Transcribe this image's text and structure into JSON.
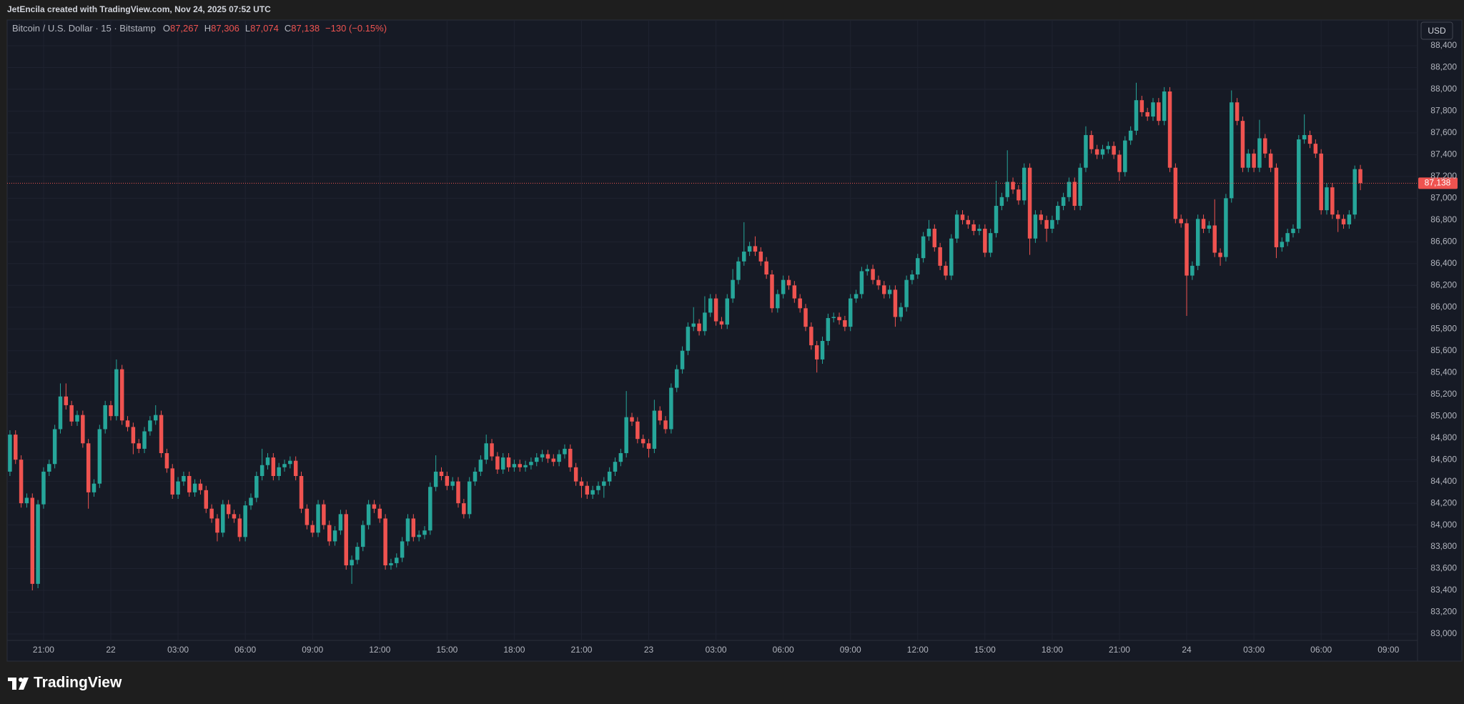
{
  "header": {
    "text": "JetEncila created with TradingView.com, Nov 24, 2025 07:52 UTC"
  },
  "footer": {
    "logo_text": "TradingView"
  },
  "chart_data": {
    "type": "candlestick",
    "title": "Bitcoin / U.S. Dollar · 15 · Bitstamp",
    "ohlc_legend": [
      {
        "key": "O",
        "value": "87,267"
      },
      {
        "key": "H",
        "value": "87,306"
      },
      {
        "key": "L",
        "value": "87,074"
      },
      {
        "key": "C",
        "value": "87,138"
      }
    ],
    "change_text": "−130 (−0.15%)",
    "currency": "USD",
    "up_color": "#26a69a",
    "down_color": "#ef5350",
    "grid": true,
    "last_price": {
      "value": 87138,
      "label": "87,138"
    },
    "xlim": [
      -0.5,
      251.2
    ],
    "xticks": [
      {
        "value": 6,
        "label": "21:00"
      },
      {
        "value": 18,
        "label": "22"
      },
      {
        "value": 30,
        "label": "03:00"
      },
      {
        "value": 42,
        "label": "06:00"
      },
      {
        "value": 54,
        "label": "09:00"
      },
      {
        "value": 66,
        "label": "12:00"
      },
      {
        "value": 78,
        "label": "15:00"
      },
      {
        "value": 90,
        "label": "18:00"
      },
      {
        "value": 102,
        "label": "21:00"
      },
      {
        "value": 114,
        "label": "23"
      },
      {
        "value": 126,
        "label": "03:00"
      },
      {
        "value": 138,
        "label": "06:00"
      },
      {
        "value": 150,
        "label": "09:00"
      },
      {
        "value": 162,
        "label": "12:00"
      },
      {
        "value": 174,
        "label": "15:00"
      },
      {
        "value": 186,
        "label": "18:00"
      },
      {
        "value": 198,
        "label": "21:00"
      },
      {
        "value": 210,
        "label": "24"
      },
      {
        "value": 222,
        "label": "03:00"
      },
      {
        "value": 234,
        "label": "06:00"
      },
      {
        "value": 246,
        "label": "09:00"
      }
    ],
    "ylim": [
      82941,
      88636
    ],
    "yticks": [
      {
        "value": 83000,
        "label": "83,000"
      },
      {
        "value": 83200,
        "label": "83,200"
      },
      {
        "value": 83400,
        "label": "83,400"
      },
      {
        "value": 83600,
        "label": "83,600"
      },
      {
        "value": 83800,
        "label": "83,800"
      },
      {
        "value": 84000,
        "label": "84,000"
      },
      {
        "value": 84200,
        "label": "84,200"
      },
      {
        "value": 84400,
        "label": "84,400"
      },
      {
        "value": 84600,
        "label": "84,600"
      },
      {
        "value": 84800,
        "label": "84,800"
      },
      {
        "value": 85000,
        "label": "85,000"
      },
      {
        "value": 85200,
        "label": "85,200"
      },
      {
        "value": 85400,
        "label": "85,400"
      },
      {
        "value": 85600,
        "label": "85,600"
      },
      {
        "value": 85800,
        "label": "85,800"
      },
      {
        "value": 86000,
        "label": "86,000"
      },
      {
        "value": 86200,
        "label": "86,200"
      },
      {
        "value": 86400,
        "label": "86,400"
      },
      {
        "value": 86600,
        "label": "86,600"
      },
      {
        "value": 86800,
        "label": "86,800"
      },
      {
        "value": 87000,
        "label": "87,000"
      },
      {
        "value": 87200,
        "label": "87,200"
      },
      {
        "value": 87400,
        "label": "87,400"
      },
      {
        "value": 87600,
        "label": "87,600"
      },
      {
        "value": 87800,
        "label": "87,800"
      },
      {
        "value": 88000,
        "label": "88,000"
      },
      {
        "value": 88200,
        "label": "88,200"
      },
      {
        "value": 88400,
        "label": "88,400"
      }
    ],
    "open": [
      84490,
      84830,
      84600,
      84200,
      84250,
      83460,
      84190,
      84490,
      84560,
      84880,
      85180,
      85100,
      84950,
      85010,
      84750,
      84300,
      84380,
      84880,
      85100,
      85000,
      85430,
      84960,
      84900,
      84750,
      84700,
      84860,
      84960,
      85010,
      84660,
      84520,
      84280,
      84400,
      84450,
      84300,
      84380,
      84320,
      84150,
      84060,
      83930,
      84190,
      84100,
      84060,
      83890,
      84180,
      84250,
      84450,
      84550,
      84620,
      84450,
      84530,
      84560,
      84590,
      84450,
      84150,
      84000,
      83930,
      84190,
      84000,
      83850,
      83950,
      84100,
      83630,
      83680,
      83800,
      84000,
      84190,
      84150,
      84060,
      83630,
      83650,
      83700,
      83850,
      84060,
      83890,
      83910,
      83950,
      84350,
      84490,
      84450,
      84360,
      84400,
      84200,
      84100,
      84400,
      84490,
      84600,
      84750,
      84630,
      84510,
      84620,
      84530,
      84560,
      84530,
      84550,
      84580,
      84620,
      84650,
      84610,
      84580,
      84650,
      84700,
      84530,
      84400,
      84360,
      84280,
      84320,
      84360,
      84400,
      84490,
      84580,
      84660,
      84990,
      84950,
      84790,
      84750,
      84700,
      85050,
      84960,
      84880,
      85260,
      85430,
      85600,
      85820,
      85850,
      85780,
      85950,
      86080,
      85870,
      85840,
      86080,
      86250,
      86420,
      86510,
      86560,
      86510,
      86420,
      86300,
      85990,
      86120,
      86250,
      86200,
      86080,
      85990,
      85820,
      85650,
      85520,
      85690,
      85900,
      85910,
      85880,
      85820,
      86080,
      86120,
      86330,
      86350,
      86250,
      86200,
      86120,
      86160,
      85910,
      86000,
      86250,
      86300,
      86450,
      86650,
      86720,
      86550,
      86380,
      86290,
      86630,
      86850,
      86800,
      86760,
      86700,
      86720,
      86500,
      86680,
      86930,
      87010,
      87150,
      87080,
      86980,
      87280,
      86630,
      86850,
      86800,
      86720,
      86800,
      86930,
      87010,
      87150,
      86930,
      87280,
      87580,
      87450,
      87400,
      87450,
      87480,
      87400,
      87240,
      87530,
      87620,
      87900,
      87790,
      87750,
      87880,
      87710,
      87980,
      87280,
      86810,
      86770,
      86290,
      86380,
      86810,
      86720,
      86750,
      86500,
      86460,
      87000,
      87880,
      87710,
      87280,
      87410,
      87280,
      87550,
      87410,
      87280,
      86550,
      86600,
      86680,
      86720,
      87540,
      87580,
      87500,
      87410,
      86890,
      87100,
      86850,
      86810,
      86760,
      86850,
      87267
    ],
    "high": [
      84870,
      84870,
      84640,
      84290,
      84290,
      84230,
      84530,
      84600,
      84920,
      85300,
      85300,
      85140,
      85050,
      85050,
      84790,
      84420,
      84920,
      85140,
      85140,
      85520,
      85470,
      85000,
      84940,
      84790,
      84900,
      85000,
      85100,
      85050,
      84700,
      84560,
      84440,
      84490,
      84490,
      84420,
      84420,
      84360,
      84190,
      84100,
      84230,
      84230,
      84140,
      84100,
      84220,
      84290,
      84490,
      84700,
      84660,
      84660,
      84570,
      84600,
      84630,
      84630,
      84490,
      84190,
      84040,
      84230,
      84230,
      84040,
      83990,
      84140,
      84140,
      83720,
      83840,
      84040,
      84230,
      84230,
      84190,
      84100,
      83690,
      83740,
      83890,
      84100,
      84100,
      83950,
      83990,
      84390,
      84640,
      84530,
      84490,
      84440,
      84440,
      84240,
      84440,
      84530,
      84640,
      84830,
      84790,
      84670,
      84660,
      84660,
      84600,
      84600,
      84590,
      84620,
      84660,
      84690,
      84690,
      84650,
      84690,
      84740,
      84740,
      84570,
      84440,
      84400,
      84360,
      84400,
      84440,
      84530,
      84620,
      84700,
      85230,
      85030,
      84990,
      84830,
      84790,
      85150,
      85090,
      85000,
      85300,
      85470,
      85640,
      85860,
      86000,
      85890,
      86100,
      86120,
      86120,
      85910,
      86120,
      86350,
      86460,
      86780,
      86600,
      86650,
      86550,
      86460,
      86340,
      86160,
      86290,
      86290,
      86240,
      86120,
      86030,
      85860,
      85690,
      85730,
      85940,
      85950,
      85950,
      85920,
      86120,
      86160,
      86370,
      86390,
      86390,
      86290,
      86240,
      86200,
      86200,
      86040,
      86290,
      86340,
      86490,
      86690,
      86800,
      86760,
      86590,
      86420,
      86670,
      86890,
      86890,
      86840,
      86800,
      86760,
      86760,
      86720,
      87160,
      87050,
      87440,
      87190,
      87120,
      87320,
      87320,
      86890,
      86890,
      86840,
      86840,
      86970,
      87050,
      87190,
      87190,
      87320,
      87660,
      87620,
      87490,
      87490,
      87520,
      87520,
      87440,
      87570,
      87660,
      88060,
      87940,
      87830,
      87920,
      87920,
      88020,
      88020,
      87320,
      86850,
      86810,
      86420,
      86850,
      86850,
      86790,
      86990,
      86540,
      87040,
      87990,
      87920,
      87750,
      87450,
      87450,
      87720,
      87590,
      87450,
      87320,
      86640,
      86720,
      86760,
      87580,
      87770,
      87620,
      87540,
      87450,
      87140,
      87140,
      86890,
      86850,
      86890,
      87300,
      87306
    ],
    "low": [
      84450,
      84560,
      84160,
      84160,
      83400,
      83420,
      84150,
      84450,
      84520,
      84840,
      85060,
      84910,
      84910,
      84710,
      84150,
      84260,
      84340,
      84840,
      84960,
      84960,
      84920,
      84860,
      84650,
      84660,
      84660,
      84820,
      84920,
      84620,
      84480,
      84240,
      84240,
      84360,
      84260,
      84260,
      84280,
      84110,
      84020,
      83850,
      83890,
      84060,
      84020,
      83850,
      83850,
      84140,
      84210,
      84410,
      84510,
      84410,
      84410,
      84490,
      84520,
      84410,
      84110,
      83960,
      83890,
      83890,
      83960,
      83810,
      83810,
      83910,
      83590,
      83460,
      83640,
      83760,
      83960,
      84110,
      84020,
      83590,
      83590,
      83610,
      83660,
      83810,
      83850,
      83850,
      83870,
      83910,
      84310,
      84410,
      84320,
      84320,
      84160,
      84060,
      84060,
      84360,
      84450,
      84560,
      84590,
      84470,
      84470,
      84490,
      84490,
      84490,
      84490,
      84510,
      84540,
      84580,
      84570,
      84540,
      84540,
      84610,
      84490,
      84360,
      84250,
      84240,
      84240,
      84280,
      84250,
      84360,
      84450,
      84540,
      84620,
      84910,
      84750,
      84710,
      84620,
      84660,
      84920,
      84840,
      84840,
      85220,
      85390,
      85560,
      85780,
      85740,
      85740,
      85910,
      85830,
      85800,
      85800,
      86040,
      86210,
      86380,
      86470,
      86470,
      86380,
      86260,
      85950,
      85950,
      86080,
      86160,
      86040,
      85950,
      85780,
      85610,
      85400,
      85480,
      85650,
      85860,
      85840,
      85780,
      85780,
      86040,
      86080,
      86290,
      86210,
      86160,
      86080,
      86080,
      85820,
      85870,
      85960,
      86210,
      86260,
      86410,
      86610,
      86510,
      86340,
      86250,
      86250,
      86590,
      86760,
      86720,
      86660,
      86660,
      86460,
      86460,
      86640,
      86890,
      86970,
      87040,
      86940,
      86940,
      86480,
      86590,
      86760,
      86600,
      86680,
      86760,
      86890,
      86970,
      86890,
      86890,
      87240,
      87410,
      87360,
      87360,
      87410,
      87360,
      87160,
      87200,
      87490,
      87580,
      87750,
      87710,
      87710,
      87670,
      87670,
      87240,
      86770,
      86730,
      85920,
      86250,
      86340,
      86680,
      86680,
      86460,
      86380,
      86420,
      86960,
      87670,
      87240,
      87240,
      87240,
      87240,
      87370,
      87240,
      86450,
      86510,
      86560,
      86640,
      86680,
      87500,
      87460,
      87370,
      86850,
      86850,
      86810,
      86690,
      86720,
      86720,
      86810,
      87074
    ],
    "close": [
      84830,
      84600,
      84200,
      84250,
      83460,
      84190,
      84490,
      84560,
      84880,
      85180,
      85100,
      84950,
      85010,
      84750,
      84300,
      84380,
      84880,
      85100,
      85000,
      85430,
      84960,
      84900,
      84750,
      84700,
      84860,
      84960,
      85010,
      84660,
      84520,
      84280,
      84400,
      84450,
      84300,
      84380,
      84320,
      84150,
      84060,
      83930,
      84190,
      84100,
      84060,
      83890,
      84180,
      84250,
      84450,
      84550,
      84620,
      84450,
      84530,
      84560,
      84590,
      84450,
      84150,
      84000,
      83930,
      84190,
      84000,
      83850,
      83950,
      84100,
      83630,
      83680,
      83800,
      84000,
      84190,
      84150,
      84060,
      83630,
      83650,
      83700,
      83850,
      84060,
      83890,
      83910,
      83950,
      84350,
      84490,
      84450,
      84360,
      84400,
      84200,
      84100,
      84400,
      84490,
      84600,
      84750,
      84630,
      84510,
      84620,
      84530,
      84560,
      84530,
      84550,
      84580,
      84620,
      84650,
      84610,
      84580,
      84650,
      84700,
      84530,
      84400,
      84360,
      84280,
      84320,
      84360,
      84400,
      84490,
      84580,
      84660,
      84990,
      84950,
      84790,
      84750,
      84700,
      85050,
      84960,
      84880,
      85260,
      85430,
      85600,
      85820,
      85850,
      85780,
      85950,
      86080,
      85870,
      85840,
      86080,
      86250,
      86420,
      86510,
      86560,
      86510,
      86420,
      86300,
      85990,
      86120,
      86250,
      86200,
      86080,
      85990,
      85820,
      85650,
      85520,
      85690,
      85900,
      85910,
      85880,
      85820,
      86080,
      86120,
      86330,
      86350,
      86250,
      86200,
      86120,
      86160,
      85910,
      86000,
      86250,
      86300,
      86450,
      86650,
      86720,
      86550,
      86380,
      86290,
      86630,
      86850,
      86800,
      86760,
      86700,
      86720,
      86500,
      86680,
      86930,
      87010,
      87150,
      87080,
      86980,
      87280,
      86630,
      86850,
      86800,
      86720,
      86800,
      86930,
      87010,
      87150,
      86930,
      87280,
      87580,
      87450,
      87400,
      87450,
      87480,
      87400,
      87240,
      87530,
      87620,
      87900,
      87790,
      87750,
      87880,
      87710,
      87980,
      87280,
      86810,
      86770,
      86290,
      86380,
      86810,
      86720,
      86750,
      86500,
      86460,
      87000,
      87880,
      87710,
      87280,
      87410,
      87280,
      87550,
      87410,
      87280,
      86550,
      86600,
      86680,
      86720,
      87540,
      87580,
      87500,
      87410,
      86890,
      87100,
      86850,
      86810,
      86760,
      86850,
      87267,
      87138
    ]
  }
}
